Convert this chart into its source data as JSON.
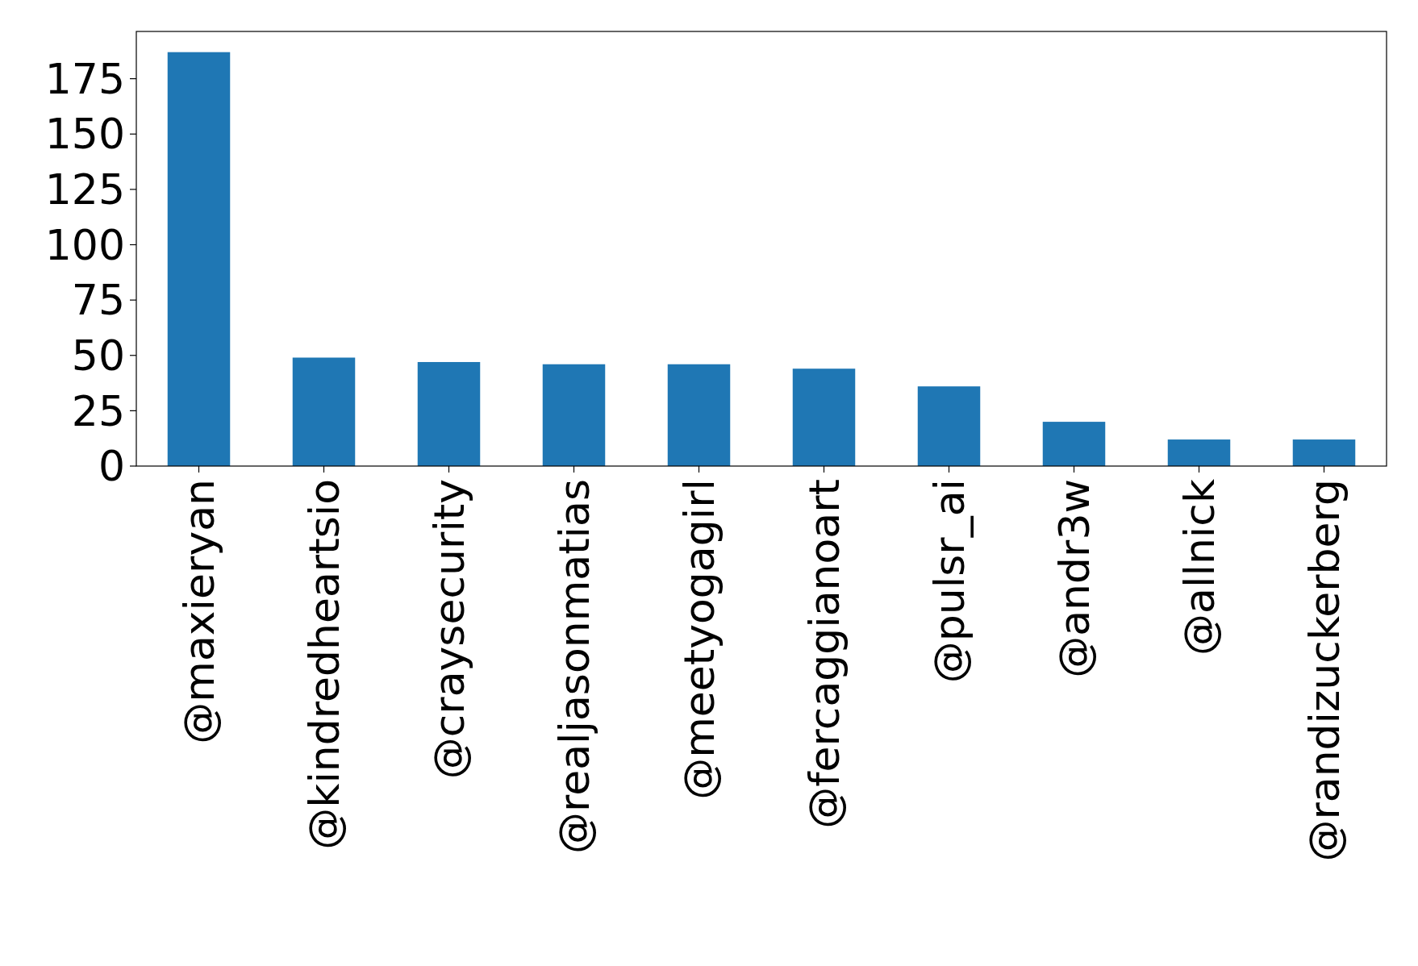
{
  "chart_data": {
    "type": "bar",
    "categories": [
      "@maxieryan",
      "@kindredheartsio",
      "@craysecurity",
      "@realjasonmatias",
      "@meetyogagirl",
      "@fercaggianoart",
      "@pulsr_ai",
      "@andr3w",
      "@allnick",
      "@randizuckerberg"
    ],
    "values": [
      187,
      49,
      47,
      46,
      46,
      44,
      36,
      20,
      12,
      12
    ],
    "color": "#1f77b4",
    "ylim": [
      0,
      196.35
    ],
    "yticks": [
      0,
      25,
      50,
      75,
      100,
      125,
      150,
      175
    ],
    "grid": false
  }
}
